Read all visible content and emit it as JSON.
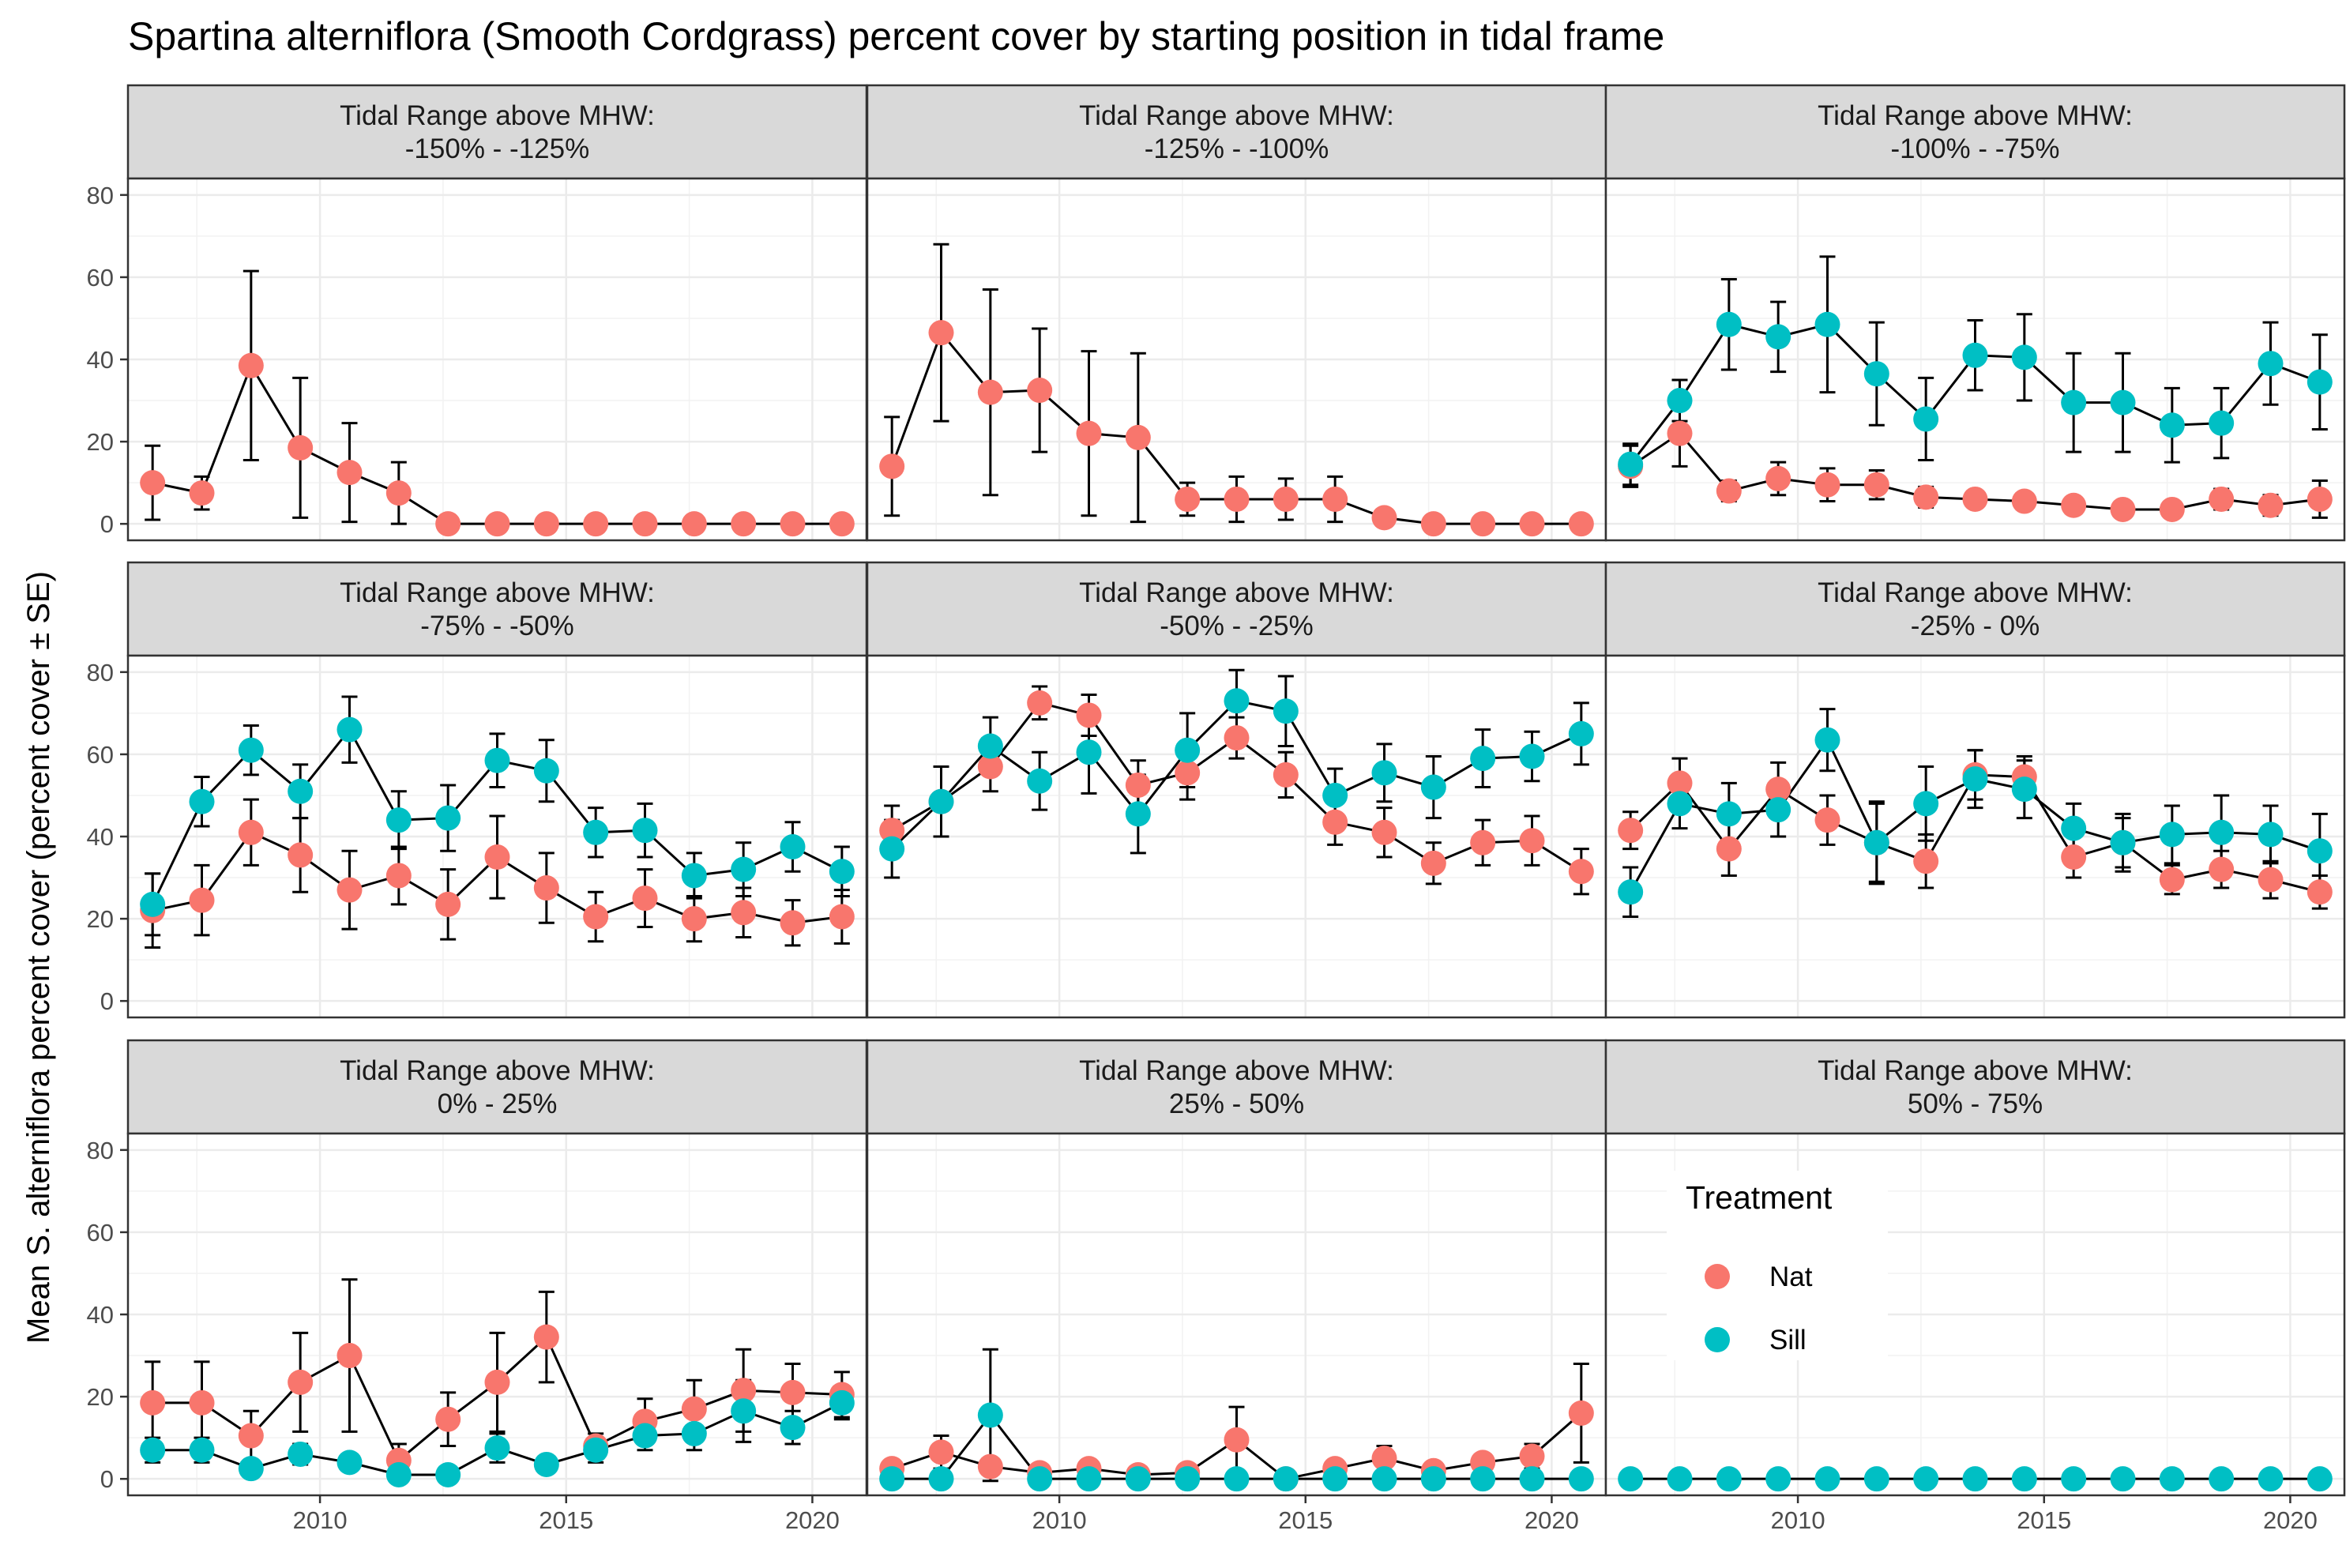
{
  "chart_data": {
    "type": "line",
    "title": "Spartina alterniflora (Smooth Cordgrass) percent cover by starting position in tidal frame",
    "ylabel": "Mean S. alterniflora percent cover (percent cover ± SE)",
    "xlabel": "",
    "ylim": [
      -4,
      84
    ],
    "xlim": [
      2006.1,
      2021.1
    ],
    "y_ticks": [
      0,
      20,
      40,
      60,
      80
    ],
    "x_ticks": [
      2010,
      2015,
      2020
    ],
    "grid": true,
    "years": [
      2006.6,
      2007.6,
      2008.6,
      2009.6,
      2010.6,
      2011.6,
      2012.6,
      2013.6,
      2014.6,
      2015.6,
      2016.6,
      2017.6,
      2018.6,
      2019.6,
      2020.6
    ],
    "facet_header": "Tidal Range above MHW:",
    "legend": {
      "title": "Treatment",
      "position": "inside-bottom-right",
      "entries": [
        {
          "name": "Nat",
          "color": "#F8766D"
        },
        {
          "name": "Sill",
          "color": "#00BFC4"
        }
      ]
    },
    "panels": [
      {
        "range": "-150%  -  -125%",
        "series": [
          {
            "name": "Nat",
            "color": "#F8766D",
            "values": [
              10,
              7.5,
              38.5,
              18.5,
              12.5,
              7.5,
              0,
              0,
              0,
              0,
              0,
              0,
              0,
              0,
              0
            ],
            "se": [
              9,
              4,
              23,
              17,
              12,
              7.5,
              0,
              0,
              0,
              0,
              0,
              0,
              0,
              0,
              0
            ]
          }
        ]
      },
      {
        "range": "-125%  -  -100%",
        "series": [
          {
            "name": "Nat",
            "color": "#F8766D",
            "values": [
              14,
              46.5,
              32,
              32.5,
              22,
              21,
              6,
              6,
              6,
              6,
              1.5,
              0,
              0,
              0,
              0
            ],
            "se": [
              12,
              21.5,
              25,
              15,
              20,
              20.5,
              4,
              5.5,
              5,
              5.5,
              1.5,
              0,
              0,
              0,
              0
            ]
          }
        ]
      },
      {
        "range": "-100%  -  -75%",
        "series": [
          {
            "name": "Nat",
            "color": "#F8766D",
            "values": [
              14,
              22,
              8,
              11,
              9.5,
              9.5,
              6.5,
              6,
              5.5,
              4.5,
              3.5,
              3.5,
              6,
              4.5,
              6
            ],
            "se": [
              5,
              8,
              2.5,
              4,
              4,
              3.5,
              2.5,
              2,
              2,
              2,
              1.5,
              1.5,
              2.5,
              2.5,
              4.5
            ]
          }
        ]
      },
      {
        "range": "-75%  -  -50%",
        "series": [
          {
            "name": "Nat",
            "color": "#F8766D",
            "values": [
              22,
              24.5,
              41,
              35.5,
              27,
              30.5,
              23.5,
              35,
              27.5,
              20.5,
              25,
              20,
              21.5,
              19,
              20.5
            ],
            "se": [
              9,
              8.5,
              8,
              9,
              9.5,
              7,
              8.5,
              10,
              8.5,
              6,
              7,
              5.5,
              6,
              5.5,
              6.5
            ]
          }
        ]
      },
      {
        "range": "-50%  -  -25%",
        "series": [
          {
            "name": "Nat",
            "color": "#F8766D",
            "values": [
              41.5,
              48.5,
              57,
              72.5,
              69.5,
              52.5,
              55.5,
              64,
              55,
              43.5,
              41,
              33.5,
              38.5,
              39,
              31.5
            ],
            "se": [
              6,
              8.5,
              6,
              4,
              5,
              6,
              6.5,
              5,
              5.5,
              5.5,
              6,
              5,
              5.5,
              6,
              5.5
            ]
          }
        ]
      },
      {
        "range": "-25%  -  0%",
        "series": [
          {
            "name": "Nat",
            "color": "#F8766D",
            "values": [
              41.5,
              53,
              37,
              51.5,
              44,
              38.5,
              34,
              55,
              54.5,
              35,
              38.5,
              29.5,
              32,
              29.5,
              26.5
            ],
            "se": [
              4.5,
              6,
              6.5,
              6.5,
              6,
              9.5,
              6.5,
              6,
              5,
              5,
              6,
              3.5,
              4.5,
              4.5,
              4
            ]
          }
        ]
      },
      {
        "range": "0%  -  25%",
        "series": [
          {
            "name": "Nat",
            "color": "#F8766D",
            "values": [
              18.5,
              18.5,
              10.5,
              23.5,
              30,
              4.5,
              14.5,
              23.5,
              34.5,
              8,
              14,
              17,
              21.5,
              21,
              20.5
            ],
            "se": [
              10,
              10,
              6,
              12,
              18.5,
              4,
              6.5,
              12,
              11,
              3,
              5.5,
              7,
              10,
              7,
              5.5
            ]
          }
        ]
      },
      {
        "range": "25%  -  50%",
        "series": [
          {
            "name": "Nat",
            "color": "#F8766D",
            "values": [
              2.5,
              6.5,
              3,
              1.5,
              2.5,
              1,
              1.5,
              9.5,
              0,
              2.5,
              5,
              2,
              4,
              5.5,
              16
            ],
            "se": [
              1.5,
              4,
              2,
              1,
              2,
              1,
              1,
              8,
              0,
              2,
              3,
              1.5,
              2,
              3,
              12
            ]
          }
        ]
      },
      {
        "range": "50%  -  75%",
        "series": []
      }
    ],
    "sill_series": [
      {
        "panel": 0,
        "values": []
      },
      {
        "panel": 1,
        "values": []
      },
      {
        "panel": 2,
        "name": "Sill",
        "color": "#00BFC4",
        "values": [
          14.5,
          30,
          48.5,
          45.5,
          48.5,
          36.5,
          25.5,
          41,
          40.5,
          29.5,
          29.5,
          24,
          24.5,
          39,
          34.5
        ],
        "se": [
          5,
          5,
          11,
          8.5,
          16.5,
          12.5,
          10,
          8.5,
          10.5,
          12,
          12,
          9,
          8.5,
          10,
          11.5
        ]
      },
      {
        "panel": 3,
        "name": "Sill",
        "color": "#00BFC4",
        "values": [
          23.5,
          48.5,
          61,
          51,
          66,
          44,
          44.5,
          58.5,
          56,
          41,
          41.5,
          30.5,
          32,
          37.5,
          31.5
        ],
        "se": [
          7.5,
          6,
          6,
          6.5,
          8,
          7,
          8,
          6.5,
          7.5,
          6,
          6.5,
          5.5,
          6.5,
          6,
          6
        ]
      },
      {
        "panel": 4,
        "name": "Sill",
        "color": "#00BFC4",
        "values": [
          37,
          48.5,
          62,
          53.5,
          60.5,
          45.5,
          61,
          73,
          70.5,
          50,
          55.5,
          52,
          59,
          59.5,
          65
        ],
        "se": [
          7,
          8.5,
          7,
          7,
          10,
          9.5,
          9,
          7.5,
          8.5,
          6.5,
          7,
          7.5,
          7,
          6,
          7.5
        ]
      },
      {
        "panel": 5,
        "name": "Sill",
        "color": "#00BFC4",
        "values": [
          26.5,
          48,
          45.5,
          46.5,
          63.5,
          38.5,
          48,
          54,
          51.5,
          42,
          38.5,
          40.5,
          41,
          40.5,
          36.5
        ],
        "se": [
          6,
          6,
          7.5,
          6.5,
          7.5,
          10,
          9,
          7,
          7,
          6,
          7,
          7,
          9,
          7,
          9
        ]
      },
      {
        "panel": 6,
        "name": "Sill",
        "color": "#00BFC4",
        "values": [
          7,
          7,
          2.5,
          6,
          4,
          1,
          1,
          7.5,
          3.5,
          7,
          10.5,
          11,
          16.5,
          12.5,
          18.5
        ],
        "se": [
          3,
          3,
          1.5,
          2.5,
          2,
          1,
          1,
          3.5,
          2,
          3,
          3.5,
          4,
          7.5,
          4,
          4
        ]
      },
      {
        "panel": 7,
        "name": "Sill",
        "color": "#00BFC4",
        "values": [
          0,
          0,
          15.5,
          0,
          0,
          0,
          0,
          0,
          0,
          0,
          0,
          0,
          0,
          0,
          0
        ],
        "se": [
          0,
          0,
          16,
          0,
          0,
          0,
          0,
          0,
          0,
          0,
          0,
          0,
          0,
          0,
          0
        ]
      },
      {
        "panel": 8,
        "name": "Sill",
        "color": "#00BFC4",
        "values": [
          0,
          0,
          0,
          0,
          0,
          0,
          0,
          0,
          0,
          0,
          0,
          0,
          0,
          0,
          0
        ],
        "se": [
          0,
          0,
          0,
          0,
          0,
          0,
          0,
          0,
          0,
          0,
          0,
          0,
          0,
          0,
          0
        ]
      }
    ]
  }
}
